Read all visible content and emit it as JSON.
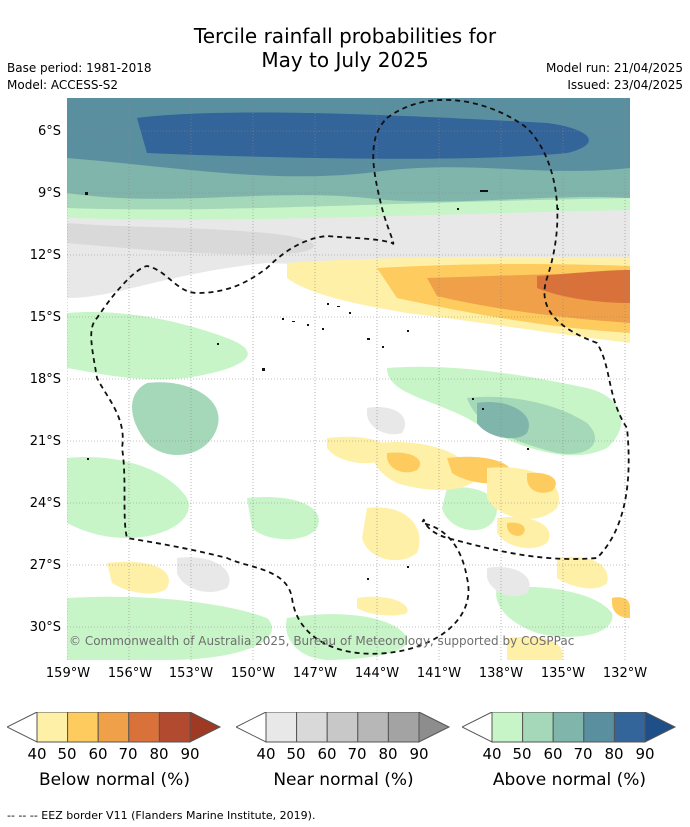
{
  "title_line1": "Tercile rainfall probabilities for",
  "title_line2": "May to July 2025",
  "base_period": "Base period: 1981-2018",
  "model": "Model: ACCESS-S2",
  "model_run": "Model run: 21/04/2025",
  "issued": "Issued: 23/04/2025",
  "copyright": "© Commonwealth of Australia 2025, Bureau of Meteorology, supported by COSPPac",
  "footer": "--  --  -- EEZ border V11 (Flanders Marine Institute, 2019).",
  "lat_labels": [
    "6°S",
    "9°S",
    "12°S",
    "15°S",
    "18°S",
    "21°S",
    "24°S",
    "27°S",
    "30°S"
  ],
  "lon_labels": [
    "159°W",
    "156°W",
    "153°W",
    "150°W",
    "147°W",
    "144°W",
    "141°W",
    "138°W",
    "135°W",
    "132°W"
  ],
  "legends": [
    {
      "caption": "Below normal (%)",
      "ticks": [
        "40",
        "50",
        "60",
        "70",
        "80",
        "90"
      ],
      "colors": [
        "#fff0a8",
        "#fecb5e",
        "#f0a049",
        "#d8723a",
        "#b14a2e",
        "#9e3a23"
      ]
    },
    {
      "caption": "Near normal (%)",
      "ticks": [
        "40",
        "50",
        "60",
        "70",
        "80",
        "90"
      ],
      "colors": [
        "#e8e8e8",
        "#d9d9d9",
        "#c8c8c8",
        "#b7b7b7",
        "#a3a3a3",
        "#8d8d8d"
      ]
    },
    {
      "caption": "Above normal (%)",
      "ticks": [
        "40",
        "50",
        "60",
        "70",
        "80",
        "90"
      ],
      "colors": [
        "#c8f5c8",
        "#a5d8b8",
        "#7fb5ab",
        "#5a8fa0",
        "#33649a",
        "#1f4f88"
      ]
    }
  ]
}
